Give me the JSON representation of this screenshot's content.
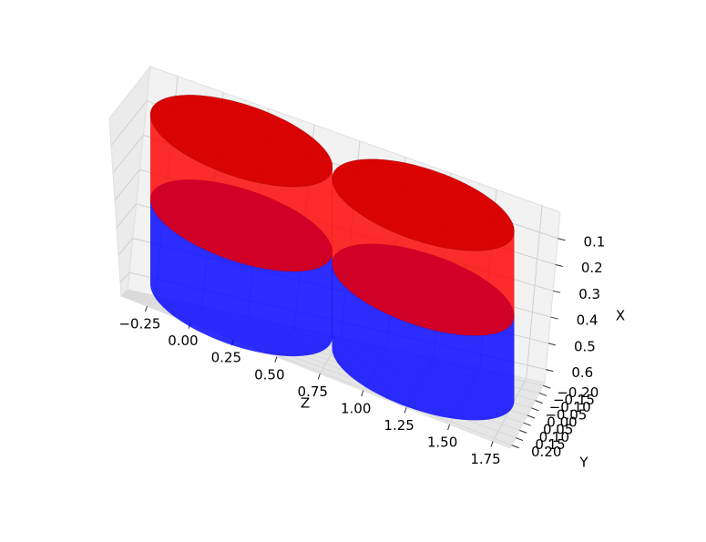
{
  "chart_data": {
    "type": "cylinders3d",
    "xlabel": "X",
    "ylabel": "Y",
    "zlabel": "Z",
    "zlim": [
      -0.4,
      1.85
    ],
    "zticks": [
      {
        "value": -0.25,
        "label": "−0.25"
      },
      {
        "value": 0,
        "label": "0.00"
      },
      {
        "value": 0.25,
        "label": "0.25"
      },
      {
        "value": 0.5,
        "label": "0.50"
      },
      {
        "value": 0.75,
        "label": "0.75"
      },
      {
        "value": 1,
        "label": "1.00"
      },
      {
        "value": 1.25,
        "label": "1.25"
      },
      {
        "value": 1.5,
        "label": "1.50"
      },
      {
        "value": 1.75,
        "label": "1.75"
      }
    ],
    "xlim": [
      0,
      0.65
    ],
    "xticks": [
      0.1,
      0.2,
      0.3,
      0.4,
      0.5,
      0.6
    ],
    "ylim": [
      -0.22,
      0.22
    ],
    "yticks": [
      {
        "value": -0.2,
        "label": "−0.20"
      },
      {
        "value": -0.15,
        "label": "−0.15"
      },
      {
        "value": -0.1,
        "label": "−0.10"
      },
      {
        "value": -0.05,
        "label": "−0.05"
      },
      {
        "value": 0,
        "label": "0.00"
      },
      {
        "value": 0.05,
        "label": "0.05"
      },
      {
        "value": 0.1,
        "label": "0.10"
      },
      {
        "value": 0.15,
        "label": "0.15"
      },
      {
        "value": 0.2,
        "label": "0.20"
      }
    ],
    "grid": true,
    "cylinders": [
      {
        "color": "#ff0000",
        "z_center": 0.1,
        "radius": 0.52,
        "x_range": [
          0,
          0.3
        ]
      },
      {
        "color": "#ff0000",
        "z_center": 1.15,
        "radius": 0.52,
        "x_range": [
          0,
          0.3
        ]
      },
      {
        "color": "#0000ff",
        "z_center": 0.1,
        "radius": 0.52,
        "x_range": [
          0.3,
          0.6
        ]
      },
      {
        "color": "#0000ff",
        "z_center": 1.15,
        "radius": 0.52,
        "x_range": [
          0.3,
          0.6
        ]
      }
    ]
  }
}
